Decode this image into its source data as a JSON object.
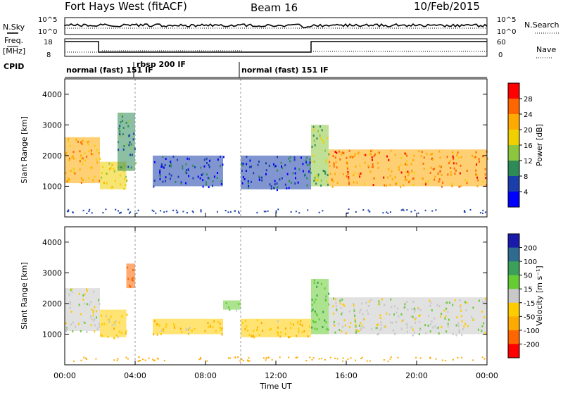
{
  "header": {
    "title": "Fort Hays West (fitACF)",
    "beam": "Beam 16",
    "date": "10/Feb/2015"
  },
  "top_panels": {
    "nsky_label": "N.Sky",
    "nsearch_label": "N.Search",
    "noise_ticks": [
      "10^5",
      "10^0"
    ],
    "freq_label_1": "Freq.",
    "freq_label_2": "[MHz]",
    "freq_ticks": [
      "18",
      "8"
    ],
    "nave_label": "Nave",
    "nave_ticks": [
      "60",
      "0"
    ],
    "cpid_label": "CPID",
    "modes": [
      "normal (fast) 151 IF",
      "rbsp 200 IF",
      "normal (fast) 151 IF"
    ]
  },
  "x_axis": {
    "label": "Time UT",
    "ticks": [
      "00:00",
      "04:00",
      "08:00",
      "12:00",
      "16:00",
      "20:00",
      "00:00"
    ]
  },
  "power_colorbar": {
    "label": "Power [dB]",
    "ticks": [
      "28",
      "24",
      "20",
      "16",
      "12",
      "8",
      "4"
    ],
    "colors": [
      "#ff0000",
      "#ff6600",
      "#ffaa00",
      "#f0d000",
      "#8cc63f",
      "#2e8b57",
      "#1a3faa",
      "#0000ff"
    ]
  },
  "velocity_colorbar": {
    "label": "Velocity [m s⁻¹]",
    "ticks": [
      "200",
      "100",
      "50",
      "15",
      "-15",
      "-50",
      "-100",
      "-200"
    ],
    "colors": [
      "#1a1aaa",
      "#2e6b8f",
      "#3aa05a",
      "#66cc33",
      "#c8c8c8",
      "#ffcc00",
      "#ffaa00",
      "#ff6600",
      "#ff0000"
    ]
  },
  "chart_data": [
    {
      "type": "heatmap",
      "title": "",
      "ylabel": "Slant Range [km]",
      "xlabel": "",
      "x_range_hours": [
        0,
        24
      ],
      "ylim": [
        0,
        4500
      ],
      "y_ticks": [
        1000,
        2000,
        3000,
        4000
      ],
      "colorbar": "Power [dB]",
      "regions": [
        {
          "x": [
            0.0,
            2.0
          ],
          "range_km": [
            1100,
            2600
          ],
          "power_db": 22
        },
        {
          "x": [
            2.0,
            3.5
          ],
          "range_km": [
            900,
            1800
          ],
          "power_db": 18
        },
        {
          "x": [
            3.0,
            4.0
          ],
          "range_km": [
            1500,
            3400
          ],
          "power_db": 10
        },
        {
          "x": [
            5.0,
            9.0
          ],
          "range_km": [
            1000,
            2000
          ],
          "power_db": 6
        },
        {
          "x": [
            10.0,
            14.0
          ],
          "range_km": [
            900,
            2000
          ],
          "power_db": 6
        },
        {
          "x": [
            14.0,
            15.0
          ],
          "range_km": [
            1000,
            3000
          ],
          "power_db": 14
        },
        {
          "x": [
            15.0,
            24.0
          ],
          "range_km": [
            1000,
            2200
          ],
          "power_db": 24
        }
      ]
    },
    {
      "type": "heatmap",
      "title": "",
      "ylabel": "Slant Range [km]",
      "xlabel": "Time UT",
      "x_range_hours": [
        0,
        24
      ],
      "ylim": [
        0,
        4500
      ],
      "y_ticks": [
        1000,
        2000,
        3000,
        4000
      ],
      "colorbar": "Velocity [m s⁻¹]",
      "regions": [
        {
          "x": [
            0.0,
            2.0
          ],
          "range_km": [
            1100,
            2500
          ],
          "velocity_ms": 0
        },
        {
          "x": [
            2.0,
            3.5
          ],
          "range_km": [
            900,
            1800
          ],
          "velocity_ms": -30
        },
        {
          "x": [
            3.5,
            4.0
          ],
          "range_km": [
            2500,
            3300
          ],
          "velocity_ms": -150
        },
        {
          "x": [
            5.0,
            9.0
          ],
          "range_km": [
            1000,
            1500
          ],
          "velocity_ms": -40
        },
        {
          "x": [
            9.0,
            10.0
          ],
          "range_km": [
            1800,
            2100
          ],
          "velocity_ms": 30
        },
        {
          "x": [
            10.0,
            14.0
          ],
          "range_km": [
            900,
            1500
          ],
          "velocity_ms": -40
        },
        {
          "x": [
            14.0,
            15.0
          ],
          "range_km": [
            1000,
            2800
          ],
          "velocity_ms": 40
        },
        {
          "x": [
            15.0,
            24.0
          ],
          "range_km": [
            1000,
            2200
          ],
          "velocity_ms": 0
        }
      ]
    }
  ]
}
